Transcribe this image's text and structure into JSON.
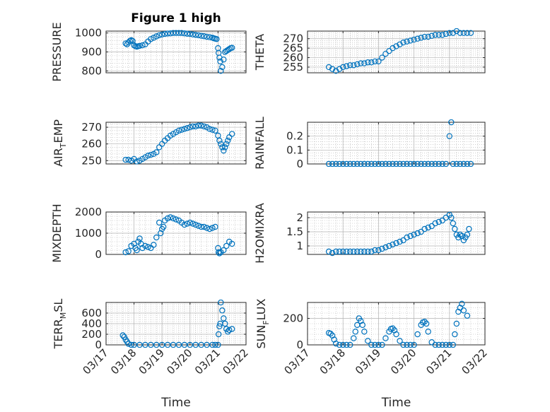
{
  "figure": {
    "title": "Figure 1 high",
    "xlabel": "Time"
  },
  "colors": {
    "marker": "#0072BD",
    "axis": "#262626",
    "grid": "#b0b0b0",
    "background": "#ffffff"
  },
  "chart_data": [
    {
      "type": "scatter",
      "name": "pressure",
      "ylabel": "PRESSURE",
      "title": "Figure 1 high",
      "ylim": [
        790,
        1010
      ],
      "yticks": [
        800,
        900,
        1000
      ],
      "ytick_labels": [
        "800",
        "900",
        "1000"
      ],
      "xlim": [
        0,
        5
      ],
      "xticks": [
        0,
        1,
        2,
        3,
        4,
        5
      ],
      "xtick_labels": [
        "03/17",
        "03/18",
        "03/19",
        "03/20",
        "03/21",
        "03/22"
      ],
      "show_xticklabels": false,
      "xlabel": "",
      "grid": true,
      "minor_grid": true,
      "x": [
        0.7,
        0.75,
        0.8,
        0.85,
        0.9,
        0.95,
        1.0,
        1.05,
        1.1,
        1.15,
        1.2,
        1.3,
        1.4,
        1.5,
        1.6,
        1.7,
        1.8,
        1.9,
        2.0,
        2.1,
        2.2,
        2.3,
        2.4,
        2.5,
        2.6,
        2.7,
        2.8,
        2.9,
        3.0,
        3.1,
        3.2,
        3.3,
        3.4,
        3.5,
        3.6,
        3.7,
        3.8,
        3.85,
        3.9,
        3.95,
        4.0,
        4.02,
        4.05,
        4.08,
        4.1,
        4.15,
        4.2,
        4.25,
        4.3,
        4.35,
        4.4,
        4.45,
        4.5
      ],
      "y": [
        945,
        940,
        950,
        958,
        962,
        958,
        935,
        930,
        928,
        930,
        932,
        935,
        940,
        955,
        968,
        975,
        982,
        988,
        992,
        995,
        997,
        998,
        1000,
        1000,
        1000,
        1000,
        998,
        996,
        995,
        992,
        990,
        988,
        985,
        983,
        980,
        978,
        975,
        972,
        970,
        968,
        920,
        895,
        870,
        850,
        800,
        820,
        860,
        900,
        905,
        910,
        915,
        920,
        922
      ]
    },
    {
      "type": "scatter",
      "name": "theta",
      "ylabel": "THETA",
      "ylim": [
        252,
        274
      ],
      "yticks": [
        255,
        260,
        265,
        270
      ],
      "ytick_labels": [
        "255",
        "260",
        "265",
        "270"
      ],
      "xlim": [
        0,
        5
      ],
      "xticks": [
        0,
        1,
        2,
        3,
        4,
        5
      ],
      "xtick_labels": [
        "03/17",
        "03/18",
        "03/19",
        "03/20",
        "03/21",
        "03/22"
      ],
      "show_xticklabels": false,
      "xlabel": "",
      "grid": true,
      "minor_grid": true,
      "x": [
        0.6,
        0.7,
        0.8,
        0.9,
        1.0,
        1.1,
        1.2,
        1.3,
        1.4,
        1.5,
        1.6,
        1.7,
        1.8,
        1.9,
        2.0,
        2.1,
        2.2,
        2.3,
        2.4,
        2.5,
        2.6,
        2.7,
        2.8,
        2.9,
        3.0,
        3.1,
        3.2,
        3.3,
        3.4,
        3.5,
        3.6,
        3.7,
        3.8,
        3.9,
        4.0,
        4.1,
        4.2,
        4.3,
        4.4,
        4.5,
        4.6
      ],
      "y": [
        255,
        254,
        253,
        254,
        255,
        255.5,
        256,
        256,
        256.5,
        257,
        257,
        257.5,
        257.5,
        258,
        258,
        260,
        262,
        263.5,
        265,
        266,
        267,
        268,
        268.5,
        269,
        269.5,
        270,
        270.5,
        271,
        271,
        271.5,
        272,
        272,
        272,
        272.5,
        273,
        273,
        274,
        273,
        273,
        273,
        273
      ]
    },
    {
      "type": "scatter",
      "name": "air_temp",
      "ylabel": "AIR_TEMP",
      "ylabel_parts": [
        "AIR",
        "T",
        "EMP"
      ],
      "ylim": [
        248,
        273
      ],
      "yticks": [
        250,
        260,
        270
      ],
      "ytick_labels": [
        "250",
        "260",
        "270"
      ],
      "xlim": [
        0,
        5
      ],
      "xticks": [
        0,
        1,
        2,
        3,
        4,
        5
      ],
      "xtick_labels": [
        "03/17",
        "03/18",
        "03/19",
        "03/20",
        "03/21",
        "03/22"
      ],
      "show_xticklabels": false,
      "xlabel": "",
      "grid": true,
      "minor_grid": true,
      "x": [
        0.7,
        0.8,
        0.9,
        1.0,
        1.1,
        1.2,
        1.3,
        1.4,
        1.5,
        1.6,
        1.7,
        1.8,
        1.9,
        2.0,
        2.1,
        2.2,
        2.3,
        2.4,
        2.5,
        2.6,
        2.7,
        2.8,
        2.9,
        3.0,
        3.1,
        3.2,
        3.3,
        3.4,
        3.5,
        3.6,
        3.7,
        3.8,
        3.9,
        4.0,
        4.05,
        4.1,
        4.15,
        4.2,
        4.25,
        4.3,
        4.35,
        4.4,
        4.5
      ],
      "y": [
        250.5,
        250.5,
        250,
        251,
        249.5,
        250,
        251,
        252,
        253,
        253.5,
        254,
        255,
        258,
        260,
        262,
        263.5,
        265,
        266,
        267,
        268,
        268.5,
        269,
        269.5,
        270,
        270.5,
        270.5,
        271,
        271,
        270.5,
        270,
        269,
        268.5,
        268,
        265,
        262,
        260,
        258,
        256,
        258,
        260,
        262,
        264,
        266
      ]
    },
    {
      "type": "scatter",
      "name": "rainfall",
      "ylabel": "RAINFALL",
      "ylim": [
        0,
        0.3
      ],
      "yticks": [
        0,
        0.1,
        0.2
      ],
      "ytick_labels": [
        "0",
        "0.1",
        "0.2"
      ],
      "xlim": [
        0,
        5
      ],
      "xticks": [
        0,
        1,
        2,
        3,
        4,
        5
      ],
      "xtick_labels": [
        "03/17",
        "03/18",
        "03/19",
        "03/20",
        "03/21",
        "03/22"
      ],
      "show_xticklabels": false,
      "xlabel": "",
      "grid": true,
      "minor_grid": true,
      "x": [
        0.6,
        0.7,
        0.8,
        0.9,
        1.0,
        1.1,
        1.2,
        1.3,
        1.4,
        1.5,
        1.6,
        1.7,
        1.8,
        1.9,
        2.0,
        2.1,
        2.2,
        2.3,
        2.4,
        2.5,
        2.6,
        2.7,
        2.8,
        2.9,
        3.0,
        3.1,
        3.2,
        3.3,
        3.4,
        3.5,
        3.6,
        3.7,
        3.8,
        3.9,
        4.0,
        4.05,
        4.1,
        4.2,
        4.3,
        4.4,
        4.5,
        4.6
      ],
      "y": [
        0,
        0,
        0,
        0,
        0,
        0,
        0,
        0,
        0,
        0,
        0,
        0,
        0,
        0,
        0,
        0,
        0,
        0,
        0,
        0,
        0,
        0,
        0,
        0,
        0,
        0,
        0,
        0,
        0,
        0,
        0,
        0,
        0,
        0,
        0.2,
        0.3,
        0,
        0,
        0,
        0,
        0,
        0
      ]
    },
    {
      "type": "scatter",
      "name": "mixdepth",
      "ylabel": "MIXDEPTH",
      "ylim": [
        0,
        2000
      ],
      "yticks": [
        0,
        1000,
        2000
      ],
      "ytick_labels": [
        "0",
        "1000",
        "2000"
      ],
      "xlim": [
        0,
        5
      ],
      "xticks": [
        0,
        1,
        2,
        3,
        4,
        5
      ],
      "xtick_labels": [
        "03/17",
        "03/18",
        "03/19",
        "03/20",
        "03/21",
        "03/22"
      ],
      "show_xticklabels": false,
      "xlabel": "",
      "grid": true,
      "minor_grid": true,
      "x": [
        0.7,
        0.8,
        0.9,
        1.0,
        1.05,
        1.1,
        1.15,
        1.2,
        1.25,
        1.3,
        1.4,
        1.5,
        1.6,
        1.7,
        1.8,
        1.9,
        1.95,
        2.0,
        2.05,
        2.1,
        2.2,
        2.3,
        2.4,
        2.5,
        2.6,
        2.7,
        2.8,
        2.9,
        3.0,
        3.1,
        3.2,
        3.3,
        3.4,
        3.5,
        3.6,
        3.7,
        3.8,
        3.9,
        4.0,
        4.02,
        4.05,
        4.1,
        4.2,
        4.3,
        4.4,
        4.5
      ],
      "y": [
        100,
        150,
        400,
        500,
        300,
        200,
        600,
        750,
        500,
        300,
        400,
        350,
        300,
        450,
        800,
        1500,
        1000,
        1200,
        1300,
        1600,
        1700,
        1750,
        1700,
        1650,
        1600,
        1500,
        1400,
        1450,
        1500,
        1450,
        1400,
        1350,
        1300,
        1300,
        1250,
        1200,
        1250,
        1300,
        300,
        100,
        50,
        100,
        200,
        400,
        600,
        500
      ]
    },
    {
      "type": "scatter",
      "name": "h2omixra",
      "ylabel": "H2OMIXRA",
      "ylim": [
        0.7,
        2.2
      ],
      "yticks": [
        1,
        1.5,
        2
      ],
      "ytick_labels": [
        "1",
        "1.5",
        "2"
      ],
      "xlim": [
        0,
        5
      ],
      "xticks": [
        0,
        1,
        2,
        3,
        4,
        5
      ],
      "xtick_labels": [
        "03/17",
        "03/18",
        "03/19",
        "03/20",
        "03/21",
        "03/22"
      ],
      "show_xticklabels": false,
      "xlabel": "",
      "grid": true,
      "minor_grid": true,
      "x": [
        0.6,
        0.7,
        0.8,
        0.9,
        1.0,
        1.1,
        1.2,
        1.3,
        1.4,
        1.5,
        1.6,
        1.7,
        1.8,
        1.9,
        2.0,
        2.1,
        2.2,
        2.3,
        2.4,
        2.5,
        2.6,
        2.7,
        2.8,
        2.9,
        3.0,
        3.1,
        3.2,
        3.3,
        3.4,
        3.5,
        3.6,
        3.7,
        3.8,
        3.9,
        4.0,
        4.05,
        4.1,
        4.15,
        4.2,
        4.25,
        4.3,
        4.35,
        4.4,
        4.45,
        4.5,
        4.55
      ],
      "y": [
        0.8,
        0.75,
        0.8,
        0.8,
        0.8,
        0.8,
        0.8,
        0.8,
        0.8,
        0.8,
        0.8,
        0.8,
        0.8,
        0.85,
        0.85,
        0.9,
        0.95,
        1.0,
        1.05,
        1.1,
        1.15,
        1.2,
        1.3,
        1.35,
        1.4,
        1.45,
        1.5,
        1.6,
        1.65,
        1.7,
        1.8,
        1.85,
        1.9,
        2.0,
        2.1,
        2.0,
        1.8,
        1.6,
        1.4,
        1.3,
        1.4,
        1.35,
        1.2,
        1.3,
        1.4,
        1.6
      ]
    },
    {
      "type": "scatter",
      "name": "terr_msl",
      "ylabel": "TERR_MSL",
      "ylabel_parts": [
        "TERR",
        "M",
        "SL"
      ],
      "ylim": [
        0,
        800
      ],
      "yticks": [
        0,
        200,
        400,
        600
      ],
      "ytick_labels": [
        "0",
        "200",
        "400",
        "600"
      ],
      "xlim": [
        0,
        5
      ],
      "xticks": [
        0,
        1,
        2,
        3,
        4,
        5
      ],
      "xtick_labels": [
        "03/17",
        "03/18",
        "03/19",
        "03/20",
        "03/21",
        "03/22"
      ],
      "show_xticklabels": true,
      "xlabel": "Time",
      "grid": true,
      "minor_grid": true,
      "x": [
        0.6,
        0.65,
        0.7,
        0.75,
        0.8,
        0.9,
        1.0,
        1.2,
        1.4,
        1.6,
        1.8,
        2.0,
        2.2,
        2.4,
        2.6,
        2.8,
        3.0,
        3.2,
        3.4,
        3.6,
        3.8,
        3.9,
        4.0,
        4.02,
        4.05,
        4.08,
        4.1,
        4.15,
        4.2,
        4.25,
        4.3,
        4.35,
        4.4,
        4.5
      ],
      "y": [
        180,
        150,
        100,
        60,
        20,
        0,
        0,
        0,
        0,
        0,
        0,
        0,
        0,
        0,
        0,
        0,
        0,
        0,
        0,
        0,
        0,
        0,
        0,
        200,
        350,
        400,
        800,
        650,
        500,
        400,
        300,
        250,
        280,
        300
      ]
    },
    {
      "type": "scatter",
      "name": "sun_flux",
      "ylabel": "SUN_FLUX",
      "ylabel_parts": [
        "SUN",
        "F",
        "LUX"
      ],
      "ylim": [
        0,
        320
      ],
      "yticks": [
        0,
        200
      ],
      "ytick_labels": [
        "0",
        "200"
      ],
      "xlim": [
        0,
        5
      ],
      "xticks": [
        0,
        1,
        2,
        3,
        4,
        5
      ],
      "xtick_labels": [
        "03/17",
        "03/18",
        "03/19",
        "03/20",
        "03/21",
        "03/22"
      ],
      "show_xticklabels": true,
      "xlabel": "Time",
      "grid": true,
      "minor_grid": true,
      "x": [
        0.6,
        0.65,
        0.7,
        0.75,
        0.8,
        0.9,
        1.0,
        1.1,
        1.2,
        1.3,
        1.35,
        1.4,
        1.45,
        1.5,
        1.55,
        1.6,
        1.7,
        1.8,
        1.9,
        2.0,
        2.1,
        2.2,
        2.3,
        2.35,
        2.4,
        2.45,
        2.5,
        2.6,
        2.7,
        2.8,
        2.9,
        3.0,
        3.1,
        3.2,
        3.25,
        3.3,
        3.35,
        3.4,
        3.5,
        3.6,
        3.7,
        3.8,
        3.9,
        4.0,
        4.1,
        4.15,
        4.2,
        4.25,
        4.3,
        4.35,
        4.4,
        4.5
      ],
      "y": [
        90,
        85,
        70,
        40,
        10,
        0,
        0,
        0,
        0,
        50,
        100,
        150,
        200,
        180,
        150,
        100,
        30,
        0,
        0,
        0,
        0,
        50,
        100,
        120,
        125,
        110,
        80,
        30,
        0,
        0,
        0,
        0,
        80,
        150,
        170,
        175,
        160,
        100,
        20,
        0,
        0,
        0,
        0,
        0,
        0,
        80,
        160,
        250,
        280,
        310,
        260,
        220
      ]
    }
  ]
}
